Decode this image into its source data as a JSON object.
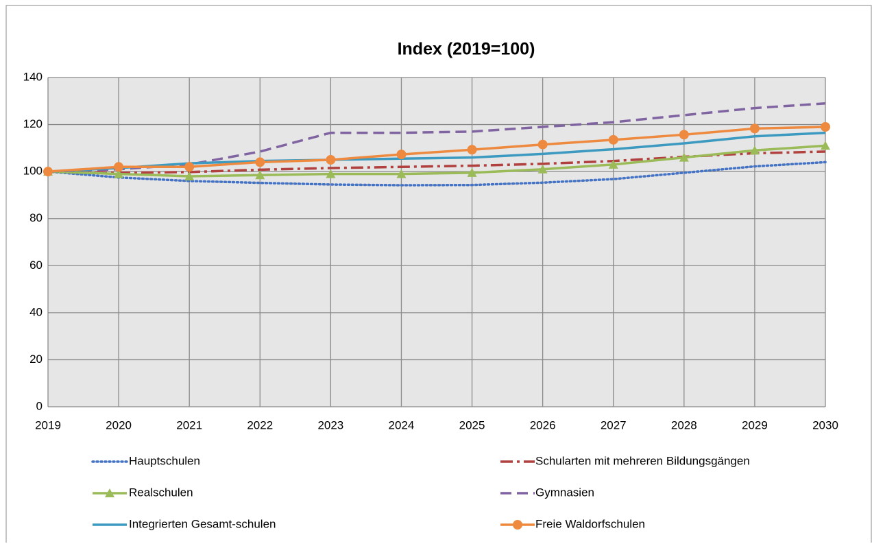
{
  "chart_data": {
    "type": "line",
    "title": "Index (2019=100)",
    "x": [
      2019,
      2020,
      2021,
      2022,
      2023,
      2024,
      2025,
      2026,
      2027,
      2028,
      2029,
      2030
    ],
    "xlim": [
      2019,
      2030
    ],
    "xticks": [
      2019,
      2020,
      2021,
      2022,
      2023,
      2024,
      2025,
      2026,
      2027,
      2028,
      2029,
      2030
    ],
    "ylim": [
      0,
      140
    ],
    "yticks": [
      0,
      20,
      40,
      60,
      80,
      100,
      120,
      140
    ],
    "grid": true,
    "series": [
      {
        "name": "Hauptschulen",
        "color": "#4472c4",
        "dash": "dotted",
        "marker": "none",
        "values": [
          100,
          97.5,
          96,
          95.2,
          94.5,
          94.2,
          94.3,
          95.3,
          96.8,
          99.5,
          102.2,
          104
        ]
      },
      {
        "name": "Schularten mit mehreren Bildungsgängen",
        "color": "#b0413e",
        "dash": "dashdot",
        "marker": "none",
        "values": [
          100,
          99.5,
          99.8,
          100.8,
          101.5,
          102,
          102.5,
          103.3,
          104.5,
          106.3,
          107.8,
          108.5
        ]
      },
      {
        "name": "Realschulen",
        "color": "#9bbb59",
        "dash": "solid",
        "marker": "triangle",
        "values": [
          100,
          99,
          98,
          98.5,
          99,
          99,
          99.5,
          101,
          103,
          106,
          109,
          111
        ]
      },
      {
        "name": "Gymnasien",
        "color": "#8064a2",
        "dash": "dashed",
        "marker": "none",
        "values": [
          100,
          101,
          103,
          108.5,
          116.5,
          116.5,
          117,
          119,
          121,
          124,
          127,
          129
        ]
      },
      {
        "name": "Integrierten Gesamt-schulen",
        "color": "#3c9ac0",
        "dash": "solid",
        "marker": "none",
        "values": [
          100,
          101.5,
          103.5,
          104.5,
          105,
          105.5,
          106,
          107.5,
          109.5,
          112,
          115,
          116.5
        ]
      },
      {
        "name": "Freie Waldorfschulen",
        "color": "#ed8a3f",
        "dash": "solid",
        "marker": "circle",
        "values": [
          100,
          102,
          102,
          104,
          105,
          107.3,
          109.3,
          111.5,
          113.5,
          115.7,
          118.3,
          119
        ]
      }
    ]
  }
}
